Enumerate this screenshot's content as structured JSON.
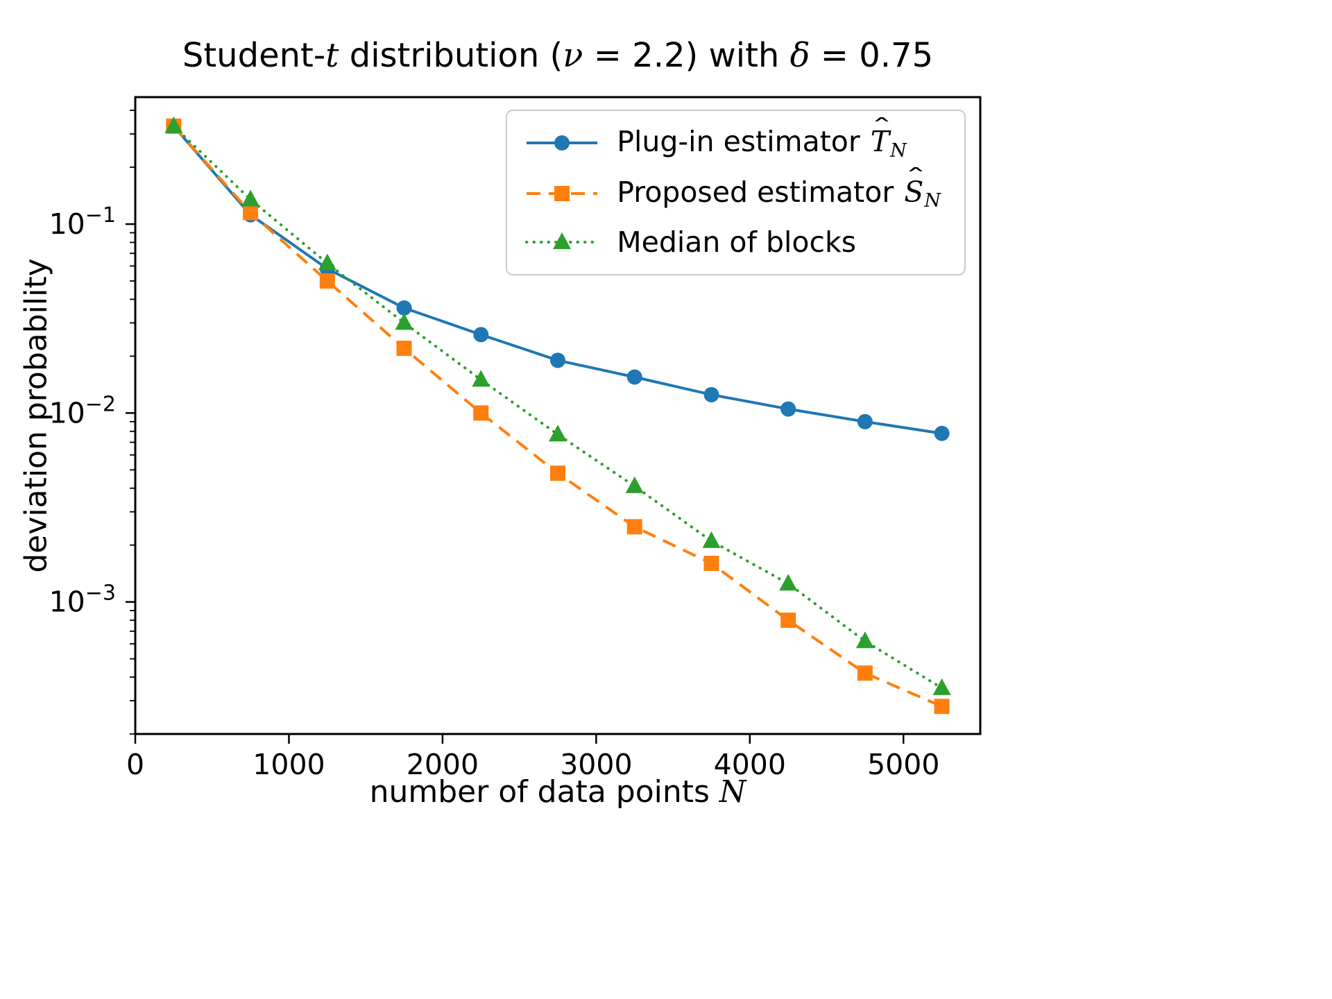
{
  "title_parts": [
    {
      "text": "Student-",
      "italic": false
    },
    {
      "text": "t",
      "italic": true
    },
    {
      "text": " distribution (",
      "italic": false
    },
    {
      "text": "ν",
      "italic": true
    },
    {
      "text": " = 2.2",
      "italic": false
    },
    {
      "text": ") with ",
      "italic": false
    },
    {
      "text": "δ",
      "italic": true
    },
    {
      "text": " = 0.75",
      "italic": false
    }
  ],
  "xlabel_parts": [
    {
      "text": "number of data points ",
      "italic": false
    },
    {
      "text": "N",
      "italic": true
    }
  ],
  "chart_data": {
    "type": "line",
    "title": "Student-t distribution (ν = 2.2) with δ = 0.75",
    "xlabel": "number of data points N",
    "ylabel": "deviation probability",
    "yscale": "log",
    "grid": false,
    "legend_position": "upper right",
    "xlim": [
      0,
      5500
    ],
    "ylim": [
      0.0002,
      0.47
    ],
    "xticks": [
      0,
      1000,
      2000,
      3000,
      4000,
      5000
    ],
    "yticks_exponents": [
      -1,
      -2,
      -3
    ],
    "ytick_labels": [
      "10^-1",
      "10^-2",
      "10^-3"
    ],
    "x": [
      250,
      750,
      1250,
      1750,
      2250,
      2750,
      3250,
      3750,
      4250,
      4750,
      5250
    ],
    "series": [
      {
        "name": "Plug-in estimator T̂_N",
        "legend": {
          "prefix": "Plug-in estimator ",
          "var": "T",
          "sub": "N"
        },
        "color": "#1f77b4",
        "linestyle": "solid",
        "marker": "circle",
        "values": [
          0.33,
          0.112,
          0.058,
          0.036,
          0.026,
          0.019,
          0.0155,
          0.0125,
          0.0105,
          0.009,
          0.0078
        ]
      },
      {
        "name": "Proposed estimator Ŝ_N",
        "legend": {
          "prefix": "Proposed estimator ",
          "var": "S",
          "sub": "N"
        },
        "color": "#ff7f0e",
        "linestyle": "dashed",
        "marker": "square",
        "values": [
          0.33,
          0.115,
          0.05,
          0.022,
          0.01,
          0.0048,
          0.0025,
          0.0016,
          0.0008,
          0.00042,
          0.00028
        ]
      },
      {
        "name": "Median of blocks",
        "legend": {
          "prefix": "Median of blocks",
          "var": "",
          "sub": ""
        },
        "color": "#2ca02c",
        "linestyle": "dotted",
        "marker": "triangle",
        "values": [
          0.33,
          0.135,
          0.062,
          0.03,
          0.015,
          0.0077,
          0.0041,
          0.0021,
          0.00125,
          0.00062,
          0.00035
        ]
      }
    ]
  }
}
